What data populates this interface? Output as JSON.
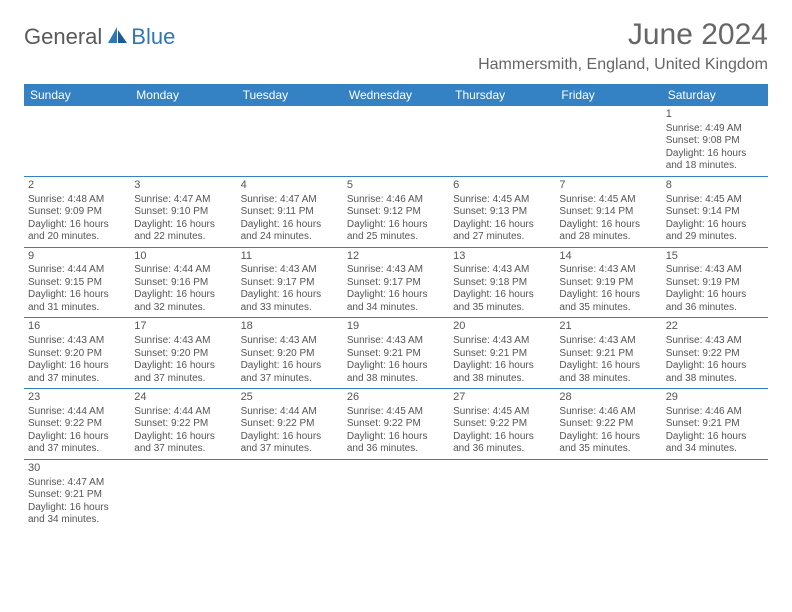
{
  "logo": {
    "part1": "General",
    "part2": "Blue"
  },
  "title": "June 2024",
  "location": "Hammersmith, England, United Kingdom",
  "colors": {
    "header_bg": "#3481c4",
    "header_text": "#ffffff",
    "cell_border": "#3481c4",
    "text_gray": "#666666",
    "cell_text": "#555555",
    "logo_gray": "#5a5a5a",
    "logo_blue": "#2e77b8"
  },
  "day_names": [
    "Sunday",
    "Monday",
    "Tuesday",
    "Wednesday",
    "Thursday",
    "Friday",
    "Saturday"
  ],
  "weeks": [
    [
      null,
      null,
      null,
      null,
      null,
      null,
      {
        "n": "1",
        "sr": "4:49 AM",
        "ss": "9:08 PM",
        "dh": "16",
        "dm": "18"
      }
    ],
    [
      {
        "n": "2",
        "sr": "4:48 AM",
        "ss": "9:09 PM",
        "dh": "16",
        "dm": "20"
      },
      {
        "n": "3",
        "sr": "4:47 AM",
        "ss": "9:10 PM",
        "dh": "16",
        "dm": "22"
      },
      {
        "n": "4",
        "sr": "4:47 AM",
        "ss": "9:11 PM",
        "dh": "16",
        "dm": "24"
      },
      {
        "n": "5",
        "sr": "4:46 AM",
        "ss": "9:12 PM",
        "dh": "16",
        "dm": "25"
      },
      {
        "n": "6",
        "sr": "4:45 AM",
        "ss": "9:13 PM",
        "dh": "16",
        "dm": "27"
      },
      {
        "n": "7",
        "sr": "4:45 AM",
        "ss": "9:14 PM",
        "dh": "16",
        "dm": "28"
      },
      {
        "n": "8",
        "sr": "4:45 AM",
        "ss": "9:14 PM",
        "dh": "16",
        "dm": "29"
      }
    ],
    [
      {
        "n": "9",
        "sr": "4:44 AM",
        "ss": "9:15 PM",
        "dh": "16",
        "dm": "31"
      },
      {
        "n": "10",
        "sr": "4:44 AM",
        "ss": "9:16 PM",
        "dh": "16",
        "dm": "32"
      },
      {
        "n": "11",
        "sr": "4:43 AM",
        "ss": "9:17 PM",
        "dh": "16",
        "dm": "33"
      },
      {
        "n": "12",
        "sr": "4:43 AM",
        "ss": "9:17 PM",
        "dh": "16",
        "dm": "34"
      },
      {
        "n": "13",
        "sr": "4:43 AM",
        "ss": "9:18 PM",
        "dh": "16",
        "dm": "35"
      },
      {
        "n": "14",
        "sr": "4:43 AM",
        "ss": "9:19 PM",
        "dh": "16",
        "dm": "35"
      },
      {
        "n": "15",
        "sr": "4:43 AM",
        "ss": "9:19 PM",
        "dh": "16",
        "dm": "36"
      }
    ],
    [
      {
        "n": "16",
        "sr": "4:43 AM",
        "ss": "9:20 PM",
        "dh": "16",
        "dm": "37"
      },
      {
        "n": "17",
        "sr": "4:43 AM",
        "ss": "9:20 PM",
        "dh": "16",
        "dm": "37"
      },
      {
        "n": "18",
        "sr": "4:43 AM",
        "ss": "9:20 PM",
        "dh": "16",
        "dm": "37"
      },
      {
        "n": "19",
        "sr": "4:43 AM",
        "ss": "9:21 PM",
        "dh": "16",
        "dm": "38"
      },
      {
        "n": "20",
        "sr": "4:43 AM",
        "ss": "9:21 PM",
        "dh": "16",
        "dm": "38"
      },
      {
        "n": "21",
        "sr": "4:43 AM",
        "ss": "9:21 PM",
        "dh": "16",
        "dm": "38"
      },
      {
        "n": "22",
        "sr": "4:43 AM",
        "ss": "9:22 PM",
        "dh": "16",
        "dm": "38"
      }
    ],
    [
      {
        "n": "23",
        "sr": "4:44 AM",
        "ss": "9:22 PM",
        "dh": "16",
        "dm": "37"
      },
      {
        "n": "24",
        "sr": "4:44 AM",
        "ss": "9:22 PM",
        "dh": "16",
        "dm": "37"
      },
      {
        "n": "25",
        "sr": "4:44 AM",
        "ss": "9:22 PM",
        "dh": "16",
        "dm": "37"
      },
      {
        "n": "26",
        "sr": "4:45 AM",
        "ss": "9:22 PM",
        "dh": "16",
        "dm": "36"
      },
      {
        "n": "27",
        "sr": "4:45 AM",
        "ss": "9:22 PM",
        "dh": "16",
        "dm": "36"
      },
      {
        "n": "28",
        "sr": "4:46 AM",
        "ss": "9:22 PM",
        "dh": "16",
        "dm": "35"
      },
      {
        "n": "29",
        "sr": "4:46 AM",
        "ss": "9:21 PM",
        "dh": "16",
        "dm": "34"
      }
    ],
    [
      {
        "n": "30",
        "sr": "4:47 AM",
        "ss": "9:21 PM",
        "dh": "16",
        "dm": "34"
      },
      null,
      null,
      null,
      null,
      null,
      null
    ]
  ],
  "labels": {
    "sunrise": "Sunrise:",
    "sunset": "Sunset:",
    "daylight_pre": "Daylight:",
    "hours_word": "hours",
    "and_word": "and",
    "minutes_word": "minutes."
  }
}
